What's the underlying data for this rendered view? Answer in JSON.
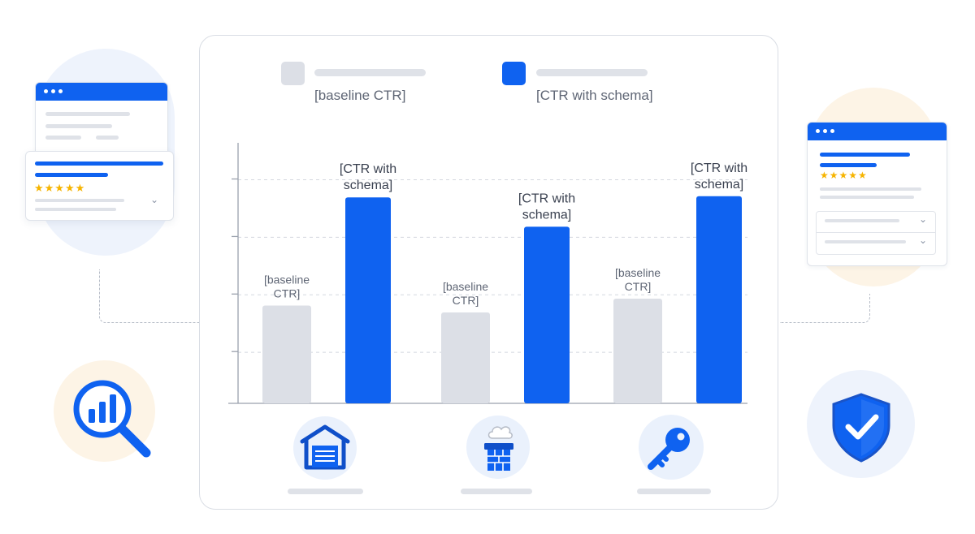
{
  "legend": {
    "baseline_label": "[baseline CTR]",
    "schema_label": "[CTR with schema]"
  },
  "colors": {
    "baseline": "#dcdfe6",
    "schema": "#0f62f0",
    "accent_blue": "#0f62f0",
    "star": "#f6b400"
  },
  "icons": {
    "categories": [
      "garage-icon",
      "chimney-icon",
      "key-icon"
    ],
    "left_badge": "search-analytics-icon",
    "right_badge": "shield-check-icon"
  },
  "chart_data": {
    "type": "bar",
    "categories": [
      "garage",
      "chimney",
      "locksmith"
    ],
    "series": [
      {
        "name": "[baseline CTR]",
        "values": [
          1.7,
          1.58,
          1.82
        ],
        "data_labels": [
          "[baseline\nCTR]",
          "[baseline\nCTR]",
          "[baseline\nCTR]"
        ]
      },
      {
        "name": "[CTR with schema]",
        "values": [
          3.58,
          3.07,
          3.6
        ],
        "data_labels": [
          "[CTR with\nschema]",
          "[CTR with\nschema]",
          "[CTR with\nschema]"
        ]
      }
    ],
    "ylim": [
      0,
      4.5
    ],
    "grid": true,
    "legend_position": "top"
  },
  "left_mockup": {
    "rating_stars": "★★★★★",
    "chevron": "⌄"
  },
  "right_mockup": {
    "rating_stars": "★★★★★",
    "chevron": "⌄"
  }
}
